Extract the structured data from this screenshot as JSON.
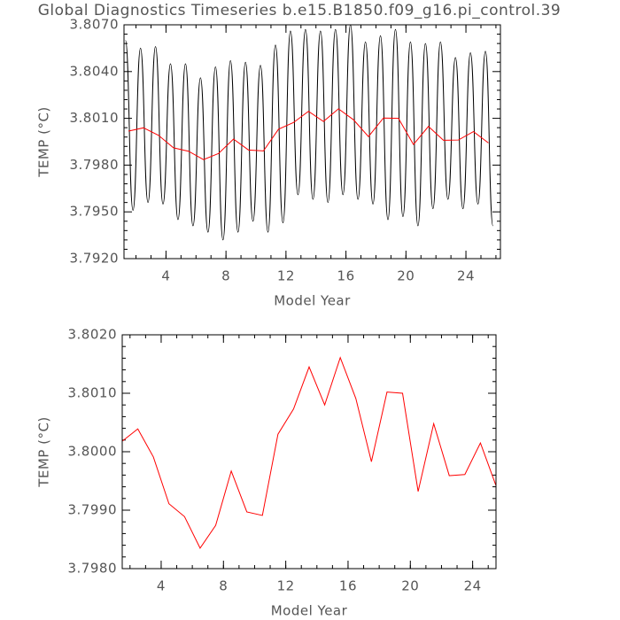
{
  "chart_data": [
    {
      "type": "line",
      "title": "Global Diagnostics Timeseries b.e15.B1850.f09_g16.pi_control.39",
      "xlabel": "Model Year",
      "ylabel": "TEMP (°C)",
      "xlim": [
        1.2,
        26.3
      ],
      "ylim": [
        3.792,
        3.807
      ],
      "xticks": [
        4,
        8,
        12,
        16,
        20,
        24
      ],
      "yticks": [
        {
          "value": 3.792,
          "label": "3.7920"
        },
        {
          "value": 3.795,
          "label": "3.7950"
        },
        {
          "value": 3.798,
          "label": "3.7980"
        },
        {
          "value": 3.801,
          "label": "3.8010"
        },
        {
          "value": 3.804,
          "label": "3.8040"
        },
        {
          "value": 3.807,
          "label": "3.8070"
        }
      ],
      "series": [
        {
          "color": "#000000",
          "smooth": true,
          "x": [
            1.3,
            1.8,
            2.3,
            2.8,
            3.3,
            3.8,
            4.3,
            4.8,
            5.3,
            5.8,
            6.3,
            6.8,
            7.3,
            7.8,
            8.3,
            8.8,
            9.3,
            9.8,
            10.3,
            10.8,
            11.3,
            11.8,
            12.3,
            12.8,
            13.3,
            13.8,
            14.3,
            14.8,
            15.3,
            15.8,
            16.3,
            16.8,
            17.3,
            17.8,
            18.3,
            18.8,
            19.3,
            19.8,
            20.3,
            20.8,
            21.3,
            21.8,
            22.3,
            22.8,
            23.3,
            23.8,
            24.3,
            24.8,
            25.3,
            25.8
          ],
          "values": [
            3.806,
            3.7951,
            3.8055,
            3.7956,
            3.8056,
            3.7955,
            3.8045,
            3.7945,
            3.8045,
            3.7941,
            3.8036,
            3.7937,
            3.8043,
            3.7932,
            3.8047,
            3.7937,
            3.8046,
            3.7944,
            3.8044,
            3.7937,
            3.8057,
            3.7943,
            3.8066,
            3.7961,
            3.8067,
            3.7958,
            3.8066,
            3.7956,
            3.8067,
            3.7961,
            3.807,
            3.7958,
            3.8059,
            3.7955,
            3.8063,
            3.7945,
            3.8067,
            3.7947,
            3.8059,
            3.7941,
            3.8058,
            3.7952,
            3.8059,
            3.7958,
            3.8049,
            3.7952,
            3.8052,
            3.7955,
            3.8053,
            3.7941
          ]
        },
        {
          "color": "#ff0000",
          "smooth": false,
          "x": [
            1.5,
            2.5,
            3.5,
            4.5,
            5.5,
            6.5,
            7.5,
            8.5,
            9.5,
            10.5,
            11.5,
            12.5,
            13.5,
            14.5,
            15.5,
            16.5,
            17.5,
            18.5,
            19.5,
            20.5,
            21.5,
            22.5,
            23.5,
            24.5,
            25.5
          ],
          "values": [
            3.80018,
            3.80039,
            3.79991,
            3.79911,
            3.79889,
            3.79835,
            3.79874,
            3.79967,
            3.79897,
            3.79891,
            3.8003,
            3.80073,
            3.80145,
            3.8008,
            3.80161,
            3.80091,
            3.79983,
            3.80102,
            3.801,
            3.79932,
            3.80048,
            3.79959,
            3.79961,
            3.80015,
            3.79942
          ]
        }
      ]
    },
    {
      "type": "line",
      "xlabel": "Model Year",
      "ylabel": "TEMP (°C)",
      "xlim": [
        1.5,
        25.5
      ],
      "ylim": [
        3.798,
        3.802
      ],
      "xticks": [
        4,
        8,
        12,
        16,
        20,
        24
      ],
      "yticks": [
        {
          "value": 3.798,
          "label": "3.7980"
        },
        {
          "value": 3.799,
          "label": "3.7990"
        },
        {
          "value": 3.8,
          "label": "3.8000"
        },
        {
          "value": 3.801,
          "label": "3.8010"
        },
        {
          "value": 3.802,
          "label": "3.8020"
        }
      ],
      "series": [
        {
          "color": "#ff0000",
          "smooth": false,
          "x": [
            1.5,
            2.5,
            3.5,
            4.5,
            5.5,
            6.5,
            7.5,
            8.5,
            9.5,
            10.5,
            11.5,
            12.5,
            13.5,
            14.5,
            15.5,
            16.5,
            17.5,
            18.5,
            19.5,
            20.5,
            21.5,
            22.5,
            23.5,
            24.5,
            25.5
          ],
          "values": [
            3.80018,
            3.80039,
            3.79991,
            3.79911,
            3.79889,
            3.79835,
            3.79874,
            3.79967,
            3.79897,
            3.79891,
            3.8003,
            3.80073,
            3.80145,
            3.8008,
            3.80161,
            3.80091,
            3.79983,
            3.80102,
            3.801,
            3.79932,
            3.80048,
            3.79959,
            3.79961,
            3.80015,
            3.79942
          ]
        }
      ]
    }
  ]
}
